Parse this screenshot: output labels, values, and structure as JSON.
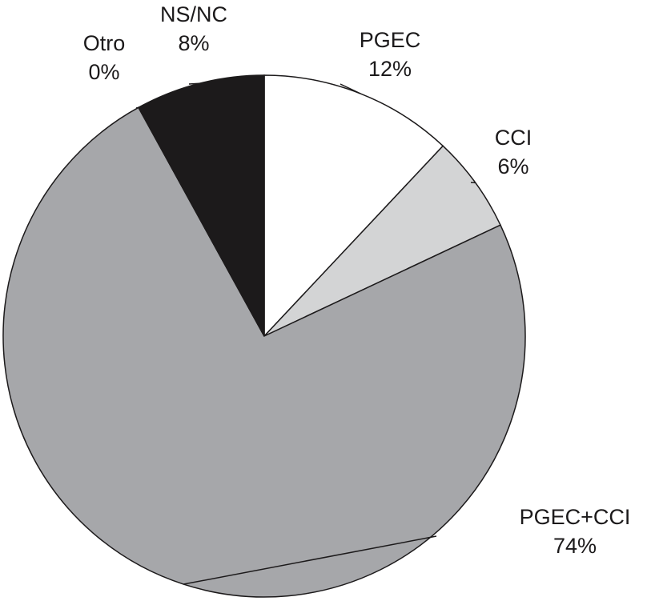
{
  "chart_data": {
    "type": "pie",
    "categories": [
      "PGEC",
      "CCI",
      "PGEC+CCI",
      "Otro",
      "NS/NC"
    ],
    "values": [
      12,
      6,
      74,
      0,
      8
    ],
    "value_labels": [
      "12%",
      "6%",
      "74%",
      "0%",
      "8%"
    ],
    "colors": [
      "#ffffff",
      "#d3d4d5",
      "#a6a7aa",
      "#77787b",
      "#1c1a1b"
    ]
  }
}
